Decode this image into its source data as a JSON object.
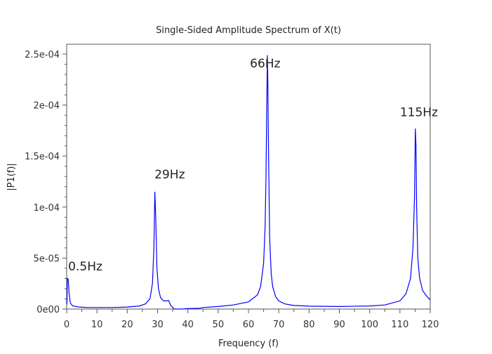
{
  "chart_data": {
    "type": "line",
    "title": "Single-Sided Amplitude Spectrum of X(t)",
    "xlabel": "Frequency (f)",
    "ylabel": "|P1(f)|",
    "xlim": [
      0,
      120
    ],
    "ylim": [
      0,
      0.00025
    ],
    "grid": false,
    "x_ticks": [
      0,
      10,
      20,
      30,
      40,
      50,
      60,
      70,
      80,
      90,
      100,
      110,
      120
    ],
    "x_tick_labels": [
      "0",
      "10",
      "20",
      "30",
      "40",
      "50",
      "60",
      "70",
      "80",
      "90",
      "100",
      "110",
      "120"
    ],
    "y_ticks": [
      0,
      5e-05,
      0.0001,
      0.00015,
      0.0002,
      0.00025
    ],
    "y_tick_labels": [
      "0e00",
      "5e-05",
      "1e-04",
      "1.5e-04",
      "2e-04",
      "2.5e-04"
    ],
    "line_color": "#0000ff",
    "annotations": [
      {
        "text": "0.5Hz",
        "x": 0.5,
        "y": 3.8e-05
      },
      {
        "text": "29Hz",
        "x": 29,
        "y": 0.000128
      },
      {
        "text": "66Hz",
        "x": 60.5,
        "y": 0.000237
      },
      {
        "text": "115Hz",
        "x": 110,
        "y": 0.000189
      }
    ],
    "series": [
      {
        "name": "|P1(f)|",
        "x": [
          0,
          0.1,
          0.2,
          0.5,
          0.8,
          1.2,
          2,
          4,
          7,
          15,
          20,
          24,
          26,
          27.5,
          28.3,
          28.8,
          29.1,
          29.4,
          29.8,
          30.3,
          31,
          32,
          33,
          33.6,
          34.5,
          35.5,
          38,
          40,
          44,
          45,
          50,
          55,
          60,
          63,
          64,
          65,
          65.5,
          65.8,
          66.0,
          66.25,
          66.4,
          66.6,
          67,
          67.5,
          68,
          69,
          70,
          72,
          75,
          80,
          90,
          100,
          105,
          110,
          112,
          113.5,
          114.3,
          114.8,
          115.1,
          115.3,
          115.5,
          115.9,
          116.5,
          117.5,
          119,
          120
        ],
        "y": [
          5e-06,
          5e-06,
          3e-05,
          2.9e-05,
          1.5e-05,
          6e-06,
          3e-06,
          2e-06,
          1.5e-06,
          1.5e-06,
          2e-06,
          3e-06,
          5e-06,
          1e-05,
          2.5e-05,
          6e-05,
          0.000115,
          9e-05,
          4e-05,
          2e-05,
          1.1e-05,
          8e-06,
          8e-06,
          8.5e-06,
          3e-06,
          0,
          0,
          5e-07,
          8e-07,
          1.5e-06,
          2.5e-06,
          4e-06,
          7e-06,
          1.4e-05,
          2.2e-05,
          4.5e-05,
          8e-05,
          0.00013,
          0.00019,
          0.000249,
          0.000225,
          0.00016,
          7e-05,
          3.5e-05,
          2.2e-05,
          1.2e-05,
          8e-06,
          5e-06,
          3.5e-06,
          2.8e-06,
          2.5e-06,
          3e-06,
          4e-06,
          8e-06,
          1.5e-05,
          3e-05,
          6e-05,
          0.00011,
          0.000177,
          0.00016,
          0.0001,
          5e-05,
          3e-05,
          1.8e-05,
          1.2e-05,
          9e-06
        ]
      }
    ]
  }
}
